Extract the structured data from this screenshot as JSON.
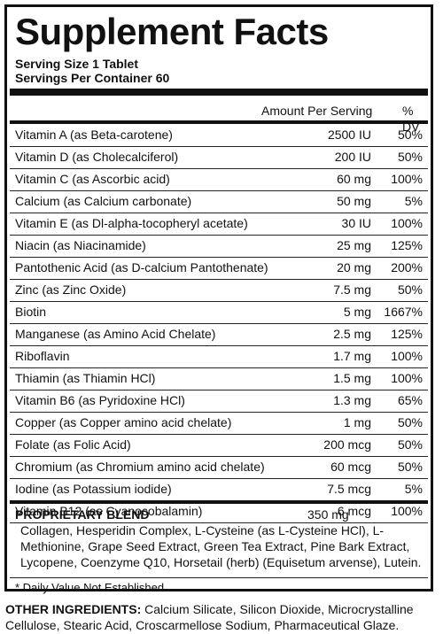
{
  "title": "Supplement Facts",
  "serving_size": "Serving Size 1 Tablet",
  "servings_per_container": "Servings Per Container 60",
  "headers": {
    "amount": "Amount Per Serving",
    "dv": "% DV"
  },
  "nutrients": [
    {
      "name": "Vitamin A (as Beta-carotene)",
      "amount": "2500 IU",
      "dv": "50%"
    },
    {
      "name": "Vitamin D (as Cholecalciferol)",
      "amount": "200 IU",
      "dv": "50%"
    },
    {
      "name": "Vitamin C (as Ascorbic acid)",
      "amount": "60 mg",
      "dv": "100%"
    },
    {
      "name": "Calcium (as Calcium carbonate)",
      "amount": "50 mg",
      "dv": "5%"
    },
    {
      "name": "Vitamin E (as Dl-alpha-tocopheryl acetate)",
      "amount": "30 IU",
      "dv": "100%"
    },
    {
      "name": "Niacin (as Niacinamide)",
      "amount": "25 mg",
      "dv": "125%"
    },
    {
      "name": "Pantothenic Acid (as D-calcium Pantothenate)",
      "amount": "20 mg",
      "dv": "200%"
    },
    {
      "name": "Zinc (as Zinc Oxide)",
      "amount": "7.5 mg",
      "dv": "50%"
    },
    {
      "name": "Biotin",
      "amount": "5 mg",
      "dv": "1667%"
    },
    {
      "name": "Manganese (as Amino Acid Chelate)",
      "amount": "2.5 mg",
      "dv": "125%"
    },
    {
      "name": "Riboflavin",
      "amount": "1.7 mg",
      "dv": "100%"
    },
    {
      "name": "Thiamin (as Thiamin HCl)",
      "amount": "1.5 mg",
      "dv": "100%"
    },
    {
      "name": "Vitamin B6 (as Pyridoxine HCl)",
      "amount": "1.3 mg",
      "dv": "65%"
    },
    {
      "name": "Copper (as Copper amino acid chelate)",
      "amount": "1 mg",
      "dv": "50%"
    },
    {
      "name": "Folate (as Folic Acid)",
      "amount": "200 mcg",
      "dv": "50%"
    },
    {
      "name": "Chromium (as Chromium amino acid chelate)",
      "amount": "60 mcg",
      "dv": "50%"
    },
    {
      "name": "Iodine (as Potassium iodide)",
      "amount": "7.5 mcg",
      "dv": "5%"
    },
    {
      "name": "Vitamin B12 (as Cyanocobalamin)",
      "amount": "6 mcg",
      "dv": "100%"
    }
  ],
  "blend": {
    "title": "PROPRIETARY BLEND",
    "amount": "350 mg",
    "ingredients": "Collagen, Hesperidin Complex, L-Cysteine (as L-Cysteine HCl), L-Methionine, Grape Seed Extract, Green Tea Extract, Pine Bark Extract, Lycopene, Coenzyme Q10, Horsetail (herb) (Equisetum arvense), Lutein."
  },
  "footnote": "* Daily Value Not Established",
  "other_ingredients": {
    "label": "OTHER INGREDIENTS:",
    "text": " Calcium Silicate, Silicon Dioxide, Microcrystalline Cellulose, Stearic Acid, Croscarmellose Sodium, Pharmaceutical Glaze."
  }
}
